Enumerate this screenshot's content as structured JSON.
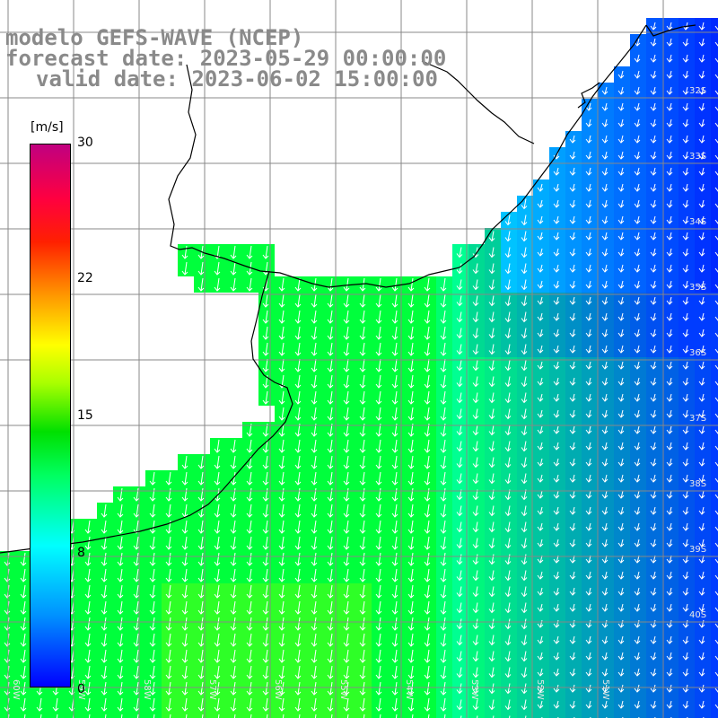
{
  "title": {
    "line1": "modelo GEFS-WAVE (NCEP)",
    "line2": "forecast date: 2023-05-29 00:00:00",
    "line3": "valid date: 2023-06-02 15:00:00"
  },
  "colorbar": {
    "unit": "[m/s]",
    "ticks": [
      "30",
      "22",
      "15",
      "8",
      "0"
    ],
    "colors": [
      "#0000ff",
      "#0090ff",
      "#00ffff",
      "#00ff60",
      "#00e000",
      "#aaff00",
      "#ffff00",
      "#ff9900",
      "#ff2000",
      "#c00080"
    ]
  },
  "map": {
    "lat_labels": [
      "32S",
      "33S",
      "34S",
      "35S",
      "36S",
      "37S",
      "38S",
      "39S",
      "40S"
    ],
    "lon_labels": [
      "60W",
      "59W",
      "58W",
      "57W",
      "56W",
      "55W",
      "54W",
      "53W",
      "52W",
      "51W"
    ],
    "wind_direction": "north-northeast to south-southwest"
  }
}
